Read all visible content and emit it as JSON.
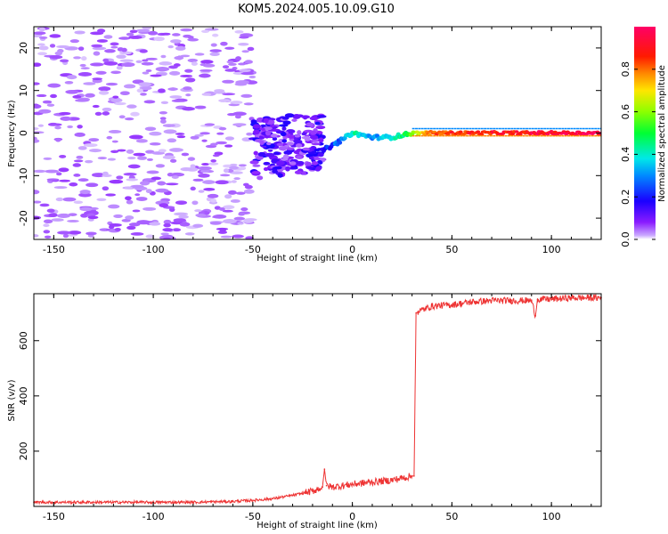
{
  "title": "KOM5.2024.005.10.09.G10",
  "chart_data": [
    {
      "type": "heatmap",
      "xlabel": "Height of straight line (km)",
      "ylabel": "Frequency (Hz)",
      "xlim": [
        -160,
        125
      ],
      "ylim": [
        -25,
        25
      ],
      "x_ticks": [
        -150,
        -100,
        -50,
        0,
        50,
        100
      ],
      "y_ticks": [
        -20,
        -10,
        0,
        10,
        20
      ],
      "colorbar": {
        "label": "Normalized spectral amplitude",
        "range": [
          0,
          1
        ],
        "ticks": [
          "0.0",
          "0.2",
          "0.4",
          "0.6",
          "0.8"
        ],
        "colormap": "gist_rainbow_r"
      },
      "description_points": {
        "noise_region_x": [
          -160,
          -50
        ],
        "scatter_cluster_x": [
          -50,
          -15
        ],
        "coherent_line": [
          {
            "x": -15,
            "f": -4,
            "amp": 0.25
          },
          {
            "x": -10,
            "f": -3,
            "amp": 0.3
          },
          {
            "x": -5,
            "f": -1.5,
            "amp": 0.35
          },
          {
            "x": 0,
            "f": 0,
            "amp": 0.5
          },
          {
            "x": 10,
            "f": -1,
            "amp": 0.35
          },
          {
            "x": 20,
            "f": -1,
            "amp": 0.45
          },
          {
            "x": 30,
            "f": 0,
            "amp": 0.6
          },
          {
            "x": 40,
            "f": 0,
            "amp": 0.9
          },
          {
            "x": 125,
            "f": 0,
            "amp": 1.0
          }
        ]
      }
    },
    {
      "type": "line",
      "xlabel": "Height of straight line (km)",
      "ylabel": "SNR (v/v)",
      "xlim": [
        -160,
        125
      ],
      "ylim": [
        0,
        770
      ],
      "x_ticks": [
        -150,
        -100,
        -50,
        0,
        50,
        100
      ],
      "y_ticks": [
        200,
        400,
        600
      ],
      "color": "#ee3333",
      "series": [
        {
          "x": [
            -160,
            -140,
            -120,
            -100,
            -80,
            -60,
            -50,
            -40,
            -30,
            -20,
            -15,
            -14,
            -13,
            -10,
            -5,
            0,
            10,
            20,
            30,
            31,
            32,
            33,
            40,
            50,
            60,
            70,
            80,
            90,
            92,
            93,
            100,
            110,
            125
          ],
          "y": [
            15,
            15,
            15,
            15,
            15,
            18,
            22,
            28,
            40,
            55,
            70,
            135,
            75,
            70,
            75,
            80,
            88,
            95,
            110,
            110,
            700,
            705,
            725,
            730,
            740,
            745,
            745,
            745,
            690,
            750,
            750,
            755,
            755
          ]
        }
      ]
    }
  ]
}
